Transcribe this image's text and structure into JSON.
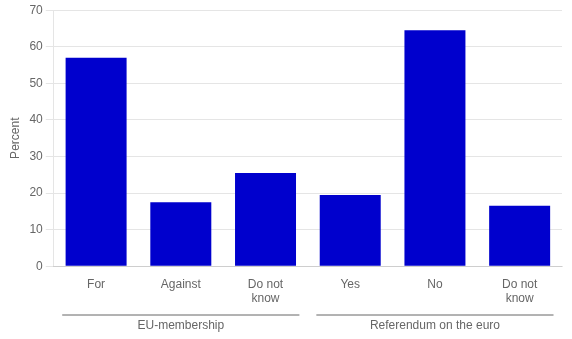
{
  "chart_data": {
    "type": "bar",
    "categories": [
      "For",
      "Against",
      "Do not\nknow",
      "Yes",
      "No",
      "Do not\nknow"
    ],
    "values": [
      57,
      17.5,
      25.5,
      19.5,
      64.5,
      16.5
    ],
    "color": "#0000CD",
    "ylabel": "Percent",
    "group_labels": [
      "EU-membership",
      "Referendum on the euro"
    ],
    "ylim": [
      0,
      70
    ],
    "yticks": [
      0,
      10,
      20,
      30,
      40,
      50,
      60,
      70
    ],
    "grid": true
  }
}
